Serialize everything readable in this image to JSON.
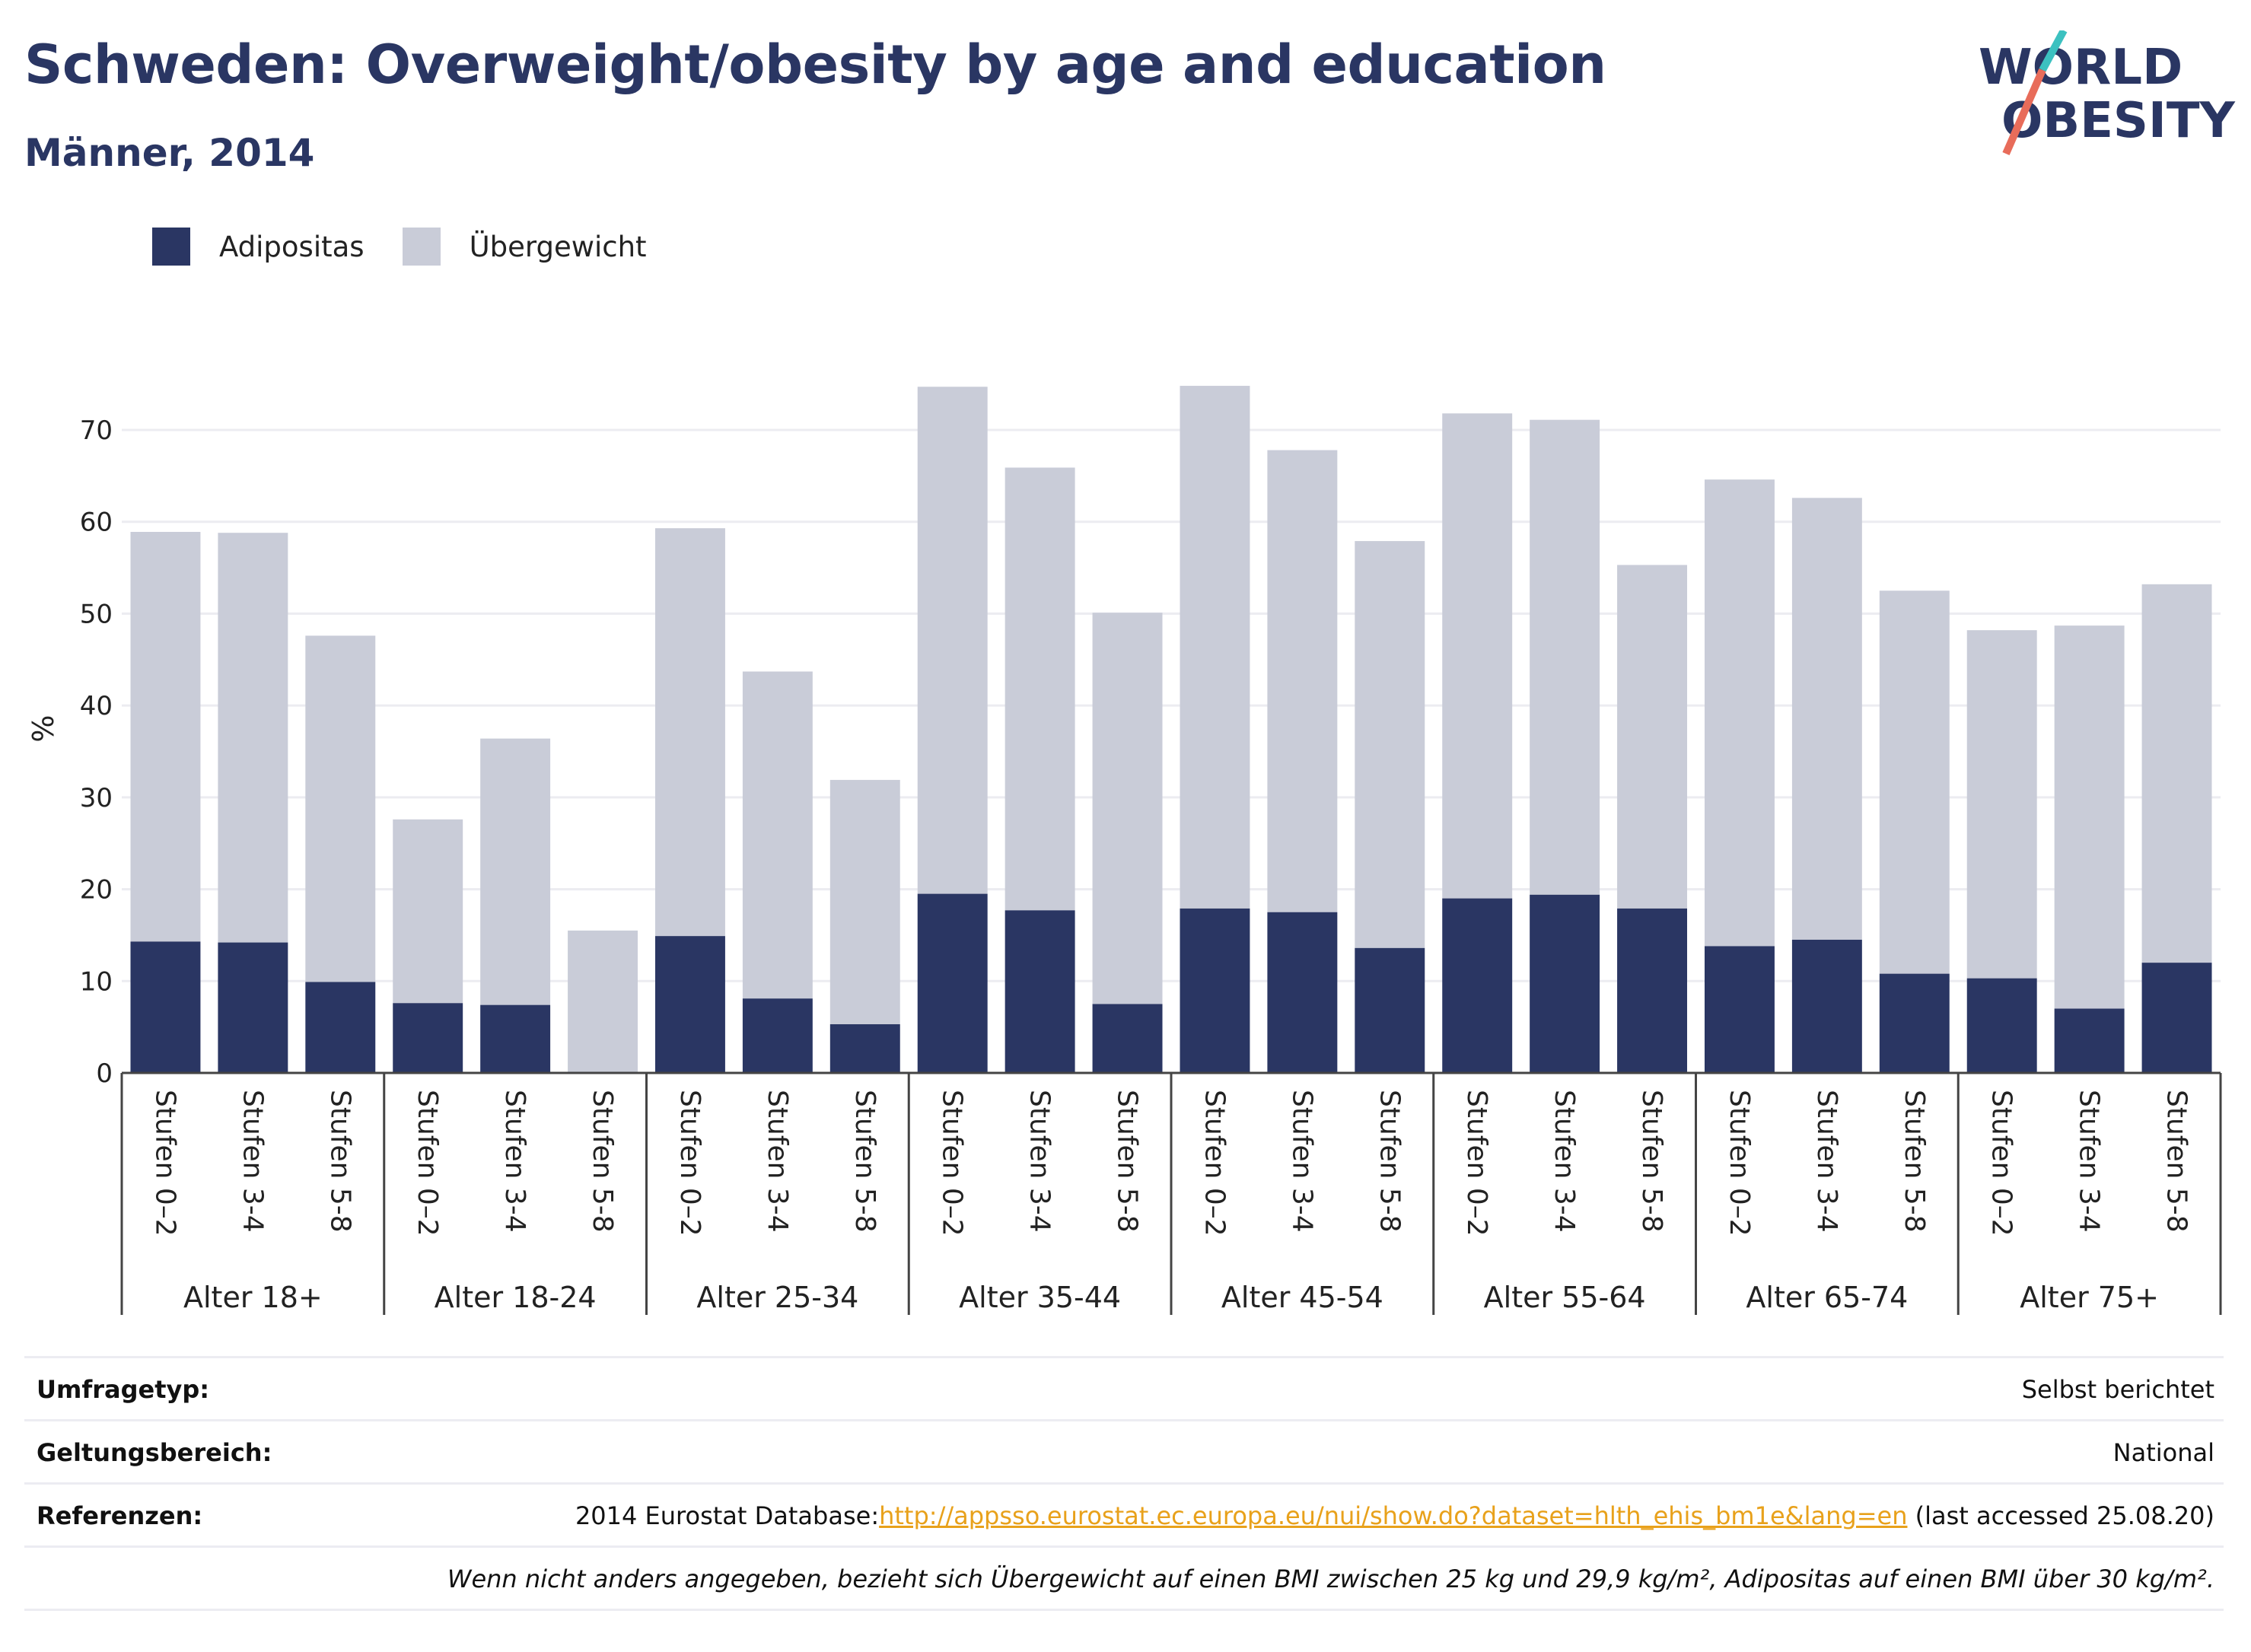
{
  "title": "Schweden: Overweight/obesity by age and education",
  "subtitle": "Männer, 2014",
  "logo": {
    "line1": "WORLD",
    "line2": "OBESITY"
  },
  "legend": [
    {
      "label": "Adipositas",
      "color": "#2a3663"
    },
    {
      "label": "Übergewicht",
      "color": "#c9ccd8"
    }
  ],
  "chart_data": {
    "type": "bar",
    "stacked": true,
    "ylabel": "%",
    "ylim": [
      0,
      75
    ],
    "yticks": [
      0,
      10,
      20,
      30,
      40,
      50,
      60,
      70
    ],
    "grid": true,
    "legend_position": "top-left",
    "groups": [
      "Alter 18+",
      "Alter 18-24",
      "Alter 25-34",
      "Alter 35-44",
      "Alter 45-54",
      "Alter 55-64",
      "Alter 65-74",
      "Alter 75+"
    ],
    "subcategories": [
      "Stufen 0–2",
      "Stufen 3-4",
      "Stufen 5-8"
    ],
    "series": [
      {
        "name": "Adipositas",
        "color": "#2a3663",
        "values": [
          14.3,
          14.2,
          9.9,
          7.6,
          7.4,
          0,
          14.9,
          8.1,
          5.3,
          19.5,
          17.7,
          7.5,
          17.9,
          17.5,
          13.6,
          19.0,
          19.4,
          17.9,
          13.8,
          14.5,
          10.8,
          10.3,
          7.0,
          12.0
        ]
      },
      {
        "name": "Übergewicht",
        "color": "#c9ccd8",
        "values": [
          44.6,
          44.6,
          37.7,
          20.0,
          29.0,
          15.5,
          44.4,
          35.6,
          26.6,
          55.2,
          48.2,
          42.6,
          56.9,
          50.3,
          44.3,
          52.8,
          51.7,
          37.4,
          50.8,
          48.1,
          41.7,
          37.9,
          41.7,
          41.2
        ]
      }
    ]
  },
  "meta": [
    {
      "key": "Umfragetyp:",
      "value": "Selbst berichtet"
    },
    {
      "key": "Geltungsbereich:",
      "value": "National"
    },
    {
      "key": "Referenzen:",
      "value_prefix": "2014 Eurostat Database:",
      "link": "http://appsso.eurostat.ec.europa.eu/nui/show.do?dataset=hlth_ehis_bm1e&lang=en",
      "value_suffix": " (last accessed 25.08.20)"
    },
    {
      "key": "",
      "value": "Wenn nicht anders angegeben, bezieht sich Übergewicht auf einen BMI zwischen 25 kg und 29,9 kg/m², Adipositas auf einen BMI über 30 kg/m²."
    }
  ]
}
